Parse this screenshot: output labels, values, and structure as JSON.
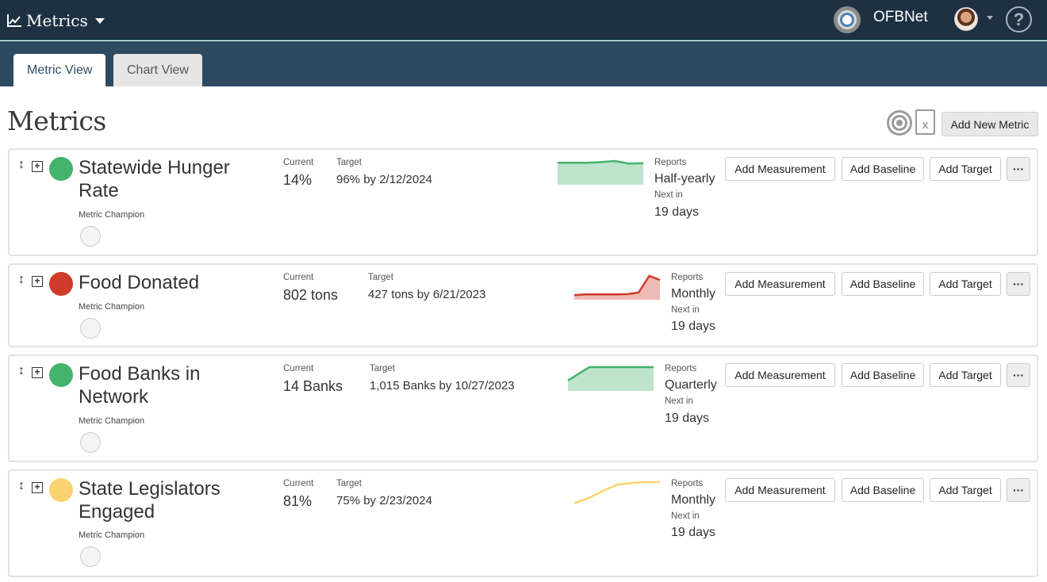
{
  "app": {
    "brand_label": "Metrics",
    "org_name": "OFBNet",
    "help_label": "?"
  },
  "tabs": [
    {
      "label": "Metric View",
      "active": true
    },
    {
      "label": "Chart View",
      "active": false
    }
  ],
  "page": {
    "title": "Metrics",
    "add_metric_label": "Add New Metric",
    "excel_icon_glyph": "x"
  },
  "labels": {
    "current": "Current",
    "target": "Target",
    "reports": "Reports",
    "next_in": "Next in",
    "champion": "Metric Champion",
    "add_measurement": "Add Measurement",
    "add_baseline": "Add Baseline",
    "add_target": "Add Target",
    "more": "···"
  },
  "colors": {
    "good": "#44b36c",
    "bad": "#cf3a2a",
    "warn": "#fad470",
    "topbar": "#1d3142",
    "tabbar": "#2d4a61"
  },
  "metrics": [
    {
      "name": "Statewide Hunger Rate",
      "status": "good",
      "current": "14%",
      "target": "96% by 2/12/2024",
      "reports": "Half-yearly",
      "next_in": "19 days",
      "trend": [
        88,
        88,
        88,
        91,
        96,
        85,
        86
      ],
      "trend_style": "area"
    },
    {
      "name": "Food Donated",
      "status": "bad",
      "current": "802 tons",
      "target": "427 tons by 6/21/2023",
      "reports": "Monthly",
      "next_in": "19 days",
      "trend": [
        12,
        15,
        15,
        15,
        15,
        16,
        22,
        88,
        72
      ],
      "trend_style": "area"
    },
    {
      "name": "Food Banks in Network",
      "status": "good",
      "current": "14 Banks",
      "target": "1,015 Banks by 10/27/2023",
      "reports": "Quarterly",
      "next_in": "19 days",
      "trend": [
        40,
        100,
        100,
        100,
        100
      ],
      "trend_style": "area"
    },
    {
      "name": "State Legislators Engaged",
      "status": "warn",
      "current": "81%",
      "target": "75% by 2/23/2024",
      "reports": "Monthly",
      "next_in": "19 days",
      "trend": [
        5,
        28,
        60,
        88,
        96,
        100,
        100
      ],
      "trend_style": "line"
    }
  ]
}
